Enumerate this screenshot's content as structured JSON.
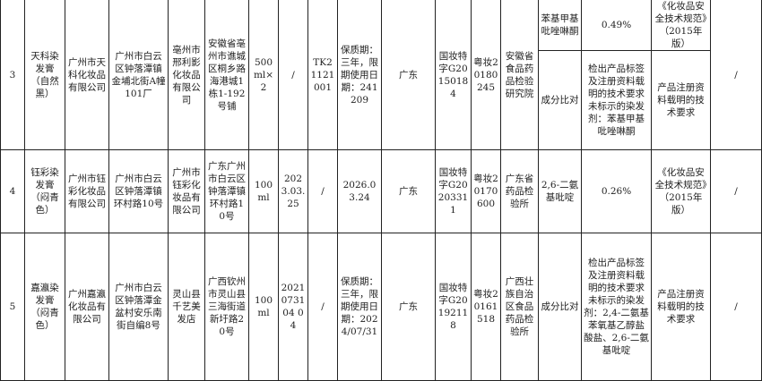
{
  "rows": [
    {
      "no": "3",
      "product": "天科染发膏（自然黑）",
      "producer": "广州市天科化妆品有限公司",
      "producer_address": "广州市白云区钟落潭镇金埔北街A幢101厂",
      "sampled_unit": "亳州市邢利影化妆品有限公司",
      "sampled_address": "安徽省亳州市谯城区桐乡路海港城1栋1-192号铺",
      "spec": "500ml×2",
      "date": "/",
      "batch": "TK21121001",
      "shelf_life": "保质期：三年，限期使用日期：241209",
      "province": "广东",
      "license": "国妆特字G20150184",
      "permit": "粤妆20180245",
      "lab": "安徽省食品药品检验研究院",
      "items": [
        {
          "item": "苯基甲基吡唑啉酮",
          "result": "0.49%",
          "standard": "《化妆品安全技术规范》（2015年版）"
        },
        {
          "item": "成分比对",
          "result": "检出产品标签及注册资料载明的技术要求未标示的染发剂：苯基甲基吡唑啉酮",
          "standard": "产品注册资料载明的技术要求"
        }
      ],
      "remark": "/"
    },
    {
      "no": "4",
      "product": "钰彩染发膏（闷青色）",
      "producer": "广州市钰彩化妆品有限公司",
      "producer_address": "广州市白云区钟落潭镇环村路10号",
      "sampled_unit": "广州市钰彩化妆品有限公司",
      "sampled_address": "广东广州市白云区钟落潭镇环村路10号",
      "spec": "100ml",
      "date": "2023.03.25",
      "batch": "/",
      "shelf_life": "2026.03.24",
      "province": "广东",
      "license": "国妆特字G20203311",
      "permit": "粤妆20170600",
      "lab": "广东省药品检验所",
      "items": [
        {
          "item": "2,6-二氨基吡啶",
          "result": "0.26%",
          "standard": "《化妆品安全技术规范》（2015年版）"
        }
      ],
      "remark": "/"
    },
    {
      "no": "5",
      "product": "嘉瀛染发膏（闷青色）",
      "producer": "广州嘉瀛化妆品有限公司",
      "producer_address": "广州市白云区钟落潭金盆村安乐南街自编8号",
      "sampled_unit": "灵山县千艺美发店",
      "sampled_address": "广西钦州市灵山县三海街道新圩路20号",
      "spec": "100ml",
      "date": "2021073104 04",
      "batch": "/",
      "shelf_life": "保质期：三年，限期使用日期：2024/07/31",
      "province": "广东",
      "license": "国妆特字G20192118",
      "permit": "粤妆20161518",
      "lab": "广西壮族自治区食品药品检验所",
      "items": [
        {
          "item": "成分比对",
          "result": "检出产品标签及注册资料载明的技术要求未标示的染发剂：2,4-二氨基苯氧基乙醇盐酸盐、2,6-二氨基吡啶",
          "standard": "产品注册资料载明的技术要求"
        }
      ],
      "remark": "/"
    }
  ]
}
